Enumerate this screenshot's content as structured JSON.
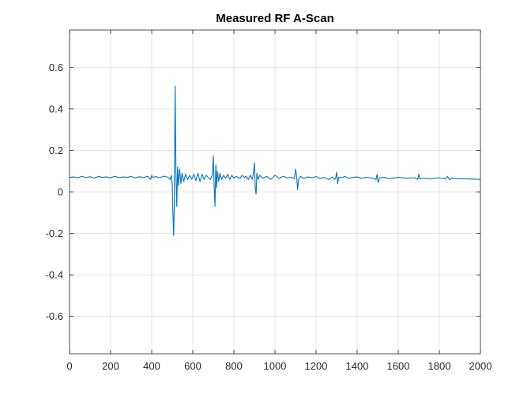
{
  "chart_data": {
    "type": "line",
    "title": "Measured RF A-Scan",
    "xlabel": "",
    "ylabel": "",
    "xlim": [
      0,
      2000
    ],
    "ylim": [
      -0.78,
      0.78
    ],
    "x_ticks": [
      0,
      200,
      400,
      600,
      800,
      1000,
      1200,
      1400,
      1600,
      1800,
      2000
    ],
    "y_ticks": [
      -0.6,
      -0.4,
      -0.2,
      0,
      0.2,
      0.4,
      0.6
    ],
    "x_tick_labels": [
      "0",
      "200",
      "400",
      "600",
      "800",
      "1000",
      "1200",
      "1400",
      "1600",
      "1800",
      "2000"
    ],
    "y_tick_labels": [
      "-0.6",
      "-0.4",
      "-0.2",
      "0",
      "0.2",
      "0.4",
      "0.6"
    ],
    "grid": true,
    "legend": "none",
    "series": [
      {
        "color": "#0072BD",
        "baseline": 0.07,
        "x": [
          0,
          20,
          40,
          60,
          80,
          100,
          120,
          140,
          160,
          180,
          200,
          220,
          240,
          260,
          280,
          300,
          320,
          340,
          360,
          380,
          395,
          400,
          405,
          420,
          440,
          460,
          480,
          490,
          495,
          500,
          503,
          507,
          510,
          514,
          518,
          522,
          526,
          530,
          536,
          542,
          548,
          556,
          565,
          575,
          585,
          595,
          605,
          615,
          625,
          635,
          645,
          655,
          665,
          675,
          685,
          695,
          700,
          704,
          708,
          712,
          716,
          720,
          726,
          732,
          740,
          750,
          760,
          770,
          780,
          790,
          800,
          810,
          820,
          830,
          840,
          850,
          860,
          870,
          880,
          890,
          896,
          900,
          904,
          908,
          912,
          918,
          926,
          940,
          960,
          980,
          1000,
          1020,
          1040,
          1060,
          1080,
          1095,
          1100,
          1105,
          1110,
          1115,
          1125,
          1140,
          1160,
          1180,
          1200,
          1220,
          1240,
          1260,
          1280,
          1290,
          1295,
          1300,
          1305,
          1310,
          1320,
          1340,
          1360,
          1380,
          1400,
          1420,
          1440,
          1460,
          1480,
          1492,
          1497,
          1502,
          1510,
          1530,
          1560,
          1600,
          1640,
          1680,
          1695,
          1700,
          1705,
          1720,
          1760,
          1800,
          1830,
          1840,
          1850,
          1860,
          1900,
          1950,
          2000
        ],
        "y": [
          0.07,
          0.072,
          0.068,
          0.075,
          0.069,
          0.073,
          0.067,
          0.074,
          0.07,
          0.072,
          0.068,
          0.075,
          0.069,
          0.072,
          0.07,
          0.074,
          0.068,
          0.073,
          0.069,
          0.075,
          0.06,
          0.08,
          0.07,
          0.074,
          0.068,
          0.076,
          0.07,
          0.06,
          0.08,
          0.04,
          -0.1,
          -0.21,
          -0.05,
          0.51,
          0.1,
          -0.07,
          0.12,
          0.03,
          0.11,
          0.04,
          0.09,
          0.05,
          0.085,
          0.06,
          0.08,
          0.06,
          0.085,
          0.055,
          0.09,
          0.05,
          0.085,
          0.06,
          0.08,
          0.07,
          0.06,
          0.08,
          0.175,
          0.03,
          -0.07,
          0.13,
          0.02,
          0.1,
          0.05,
          0.09,
          0.06,
          0.08,
          0.065,
          0.085,
          0.06,
          0.08,
          0.065,
          0.075,
          0.07,
          0.065,
          0.08,
          0.07,
          0.075,
          0.06,
          0.08,
          0.06,
          0.1,
          0.14,
          0.02,
          -0.01,
          0.09,
          0.06,
          0.08,
          0.065,
          0.075,
          0.06,
          0.08,
          0.065,
          0.075,
          0.068,
          0.07,
          0.065,
          0.11,
          0.08,
          0.01,
          0.06,
          0.075,
          0.065,
          0.072,
          0.068,
          0.074,
          0.065,
          0.07,
          0.06,
          0.072,
          0.06,
          0.065,
          0.095,
          0.04,
          0.07,
          0.068,
          0.074,
          0.066,
          0.07,
          0.072,
          0.065,
          0.07,
          0.068,
          0.066,
          0.06,
          0.085,
          0.045,
          0.068,
          0.07,
          0.064,
          0.07,
          0.066,
          0.068,
          0.06,
          0.085,
          0.062,
          0.066,
          0.064,
          0.068,
          0.062,
          0.075,
          0.058,
          0.066,
          0.064,
          0.062,
          0.06
        ]
      }
    ]
  }
}
